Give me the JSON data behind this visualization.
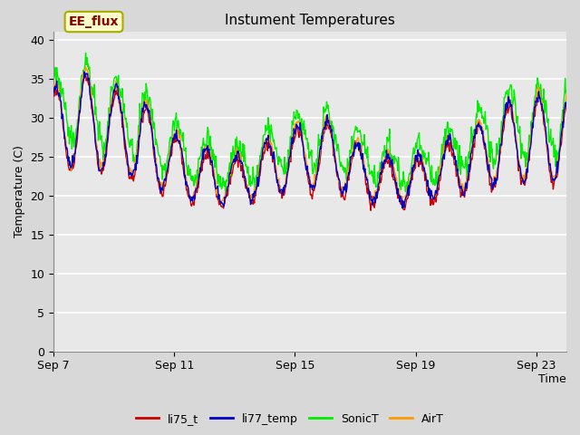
{
  "title": "Instument Temperatures",
  "xlabel": "Time",
  "ylabel": "Temperature (C)",
  "ylim": [
    0,
    41
  ],
  "yticks": [
    0,
    5,
    10,
    15,
    20,
    25,
    30,
    35,
    40
  ],
  "x_tick_labels": [
    "Sep 7",
    "Sep 11",
    "Sep 15",
    "Sep 19",
    "Sep 23"
  ],
  "tick_positions": [
    0,
    4,
    8,
    12,
    16
  ],
  "legend_labels": [
    "li75_t",
    "li77_temp",
    "SonicT",
    "AirT"
  ],
  "legend_colors": [
    "#cc0000",
    "#0000cc",
    "#00ee00",
    "#ff9900"
  ],
  "annotation_text": "EE_flux",
  "annotation_color": "#880000",
  "annotation_bg": "#ffffcc",
  "annotation_edge": "#aaaa00",
  "fig_bg": "#d8d8d8",
  "plot_bg": "#e8e8e8",
  "grid_color": "#ffffff",
  "line_width": 1.0,
  "n_days": 17,
  "pts_per_day": 48,
  "title_fontsize": 11,
  "label_fontsize": 9,
  "tick_fontsize": 9
}
